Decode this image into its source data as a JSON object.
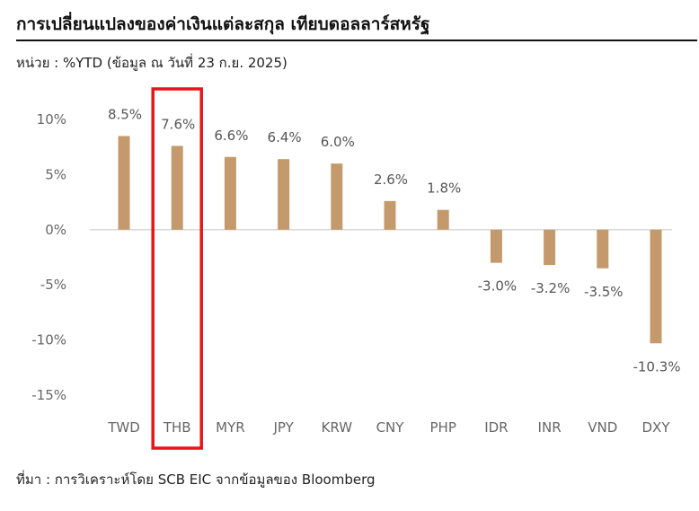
{
  "header": {
    "title": "การเปลี่ยนแปลงของค่าเงินแต่ละสกุล  เทียบดอลลาร์สหรัฐ",
    "subtitle": "หน่วย : %YTD (ข้อมูล ณ วันที่ 23 ก.ย. 2025)"
  },
  "footer": {
    "source": "ที่มา : การวิเคราะห์โดย SCB EIC จากข้อมูลของ Bloomberg"
  },
  "colors": {
    "bar": "#c49a6c",
    "highlight": "#e8131b",
    "zero_line": "#d9d9d9"
  },
  "chart_data": {
    "type": "bar",
    "categories": [
      "TWD",
      "THB",
      "MYR",
      "JPY",
      "KRW",
      "CNY",
      "PHP",
      "IDR",
      "INR",
      "VND",
      "DXY"
    ],
    "values": [
      8.5,
      7.6,
      6.6,
      6.4,
      6.0,
      2.6,
      1.8,
      -3.0,
      -3.2,
      -3.5,
      -10.3
    ],
    "data_labels": [
      "8.5%",
      "7.6%",
      "6.6%",
      "6.4%",
      "6.0%",
      "2.6%",
      "1.8%",
      "-3.0%",
      "-3.2%",
      "-3.5%",
      "-10.3%"
    ],
    "y_ticks": [
      10,
      5,
      0,
      -5,
      -10,
      -15
    ],
    "y_tick_labels": [
      "10%",
      "5%",
      "0%",
      "-5%",
      "-10%",
      "-15%"
    ],
    "ylim": [
      -15,
      10
    ],
    "grid": false,
    "legend": "none",
    "highlighted_category": "THB"
  }
}
